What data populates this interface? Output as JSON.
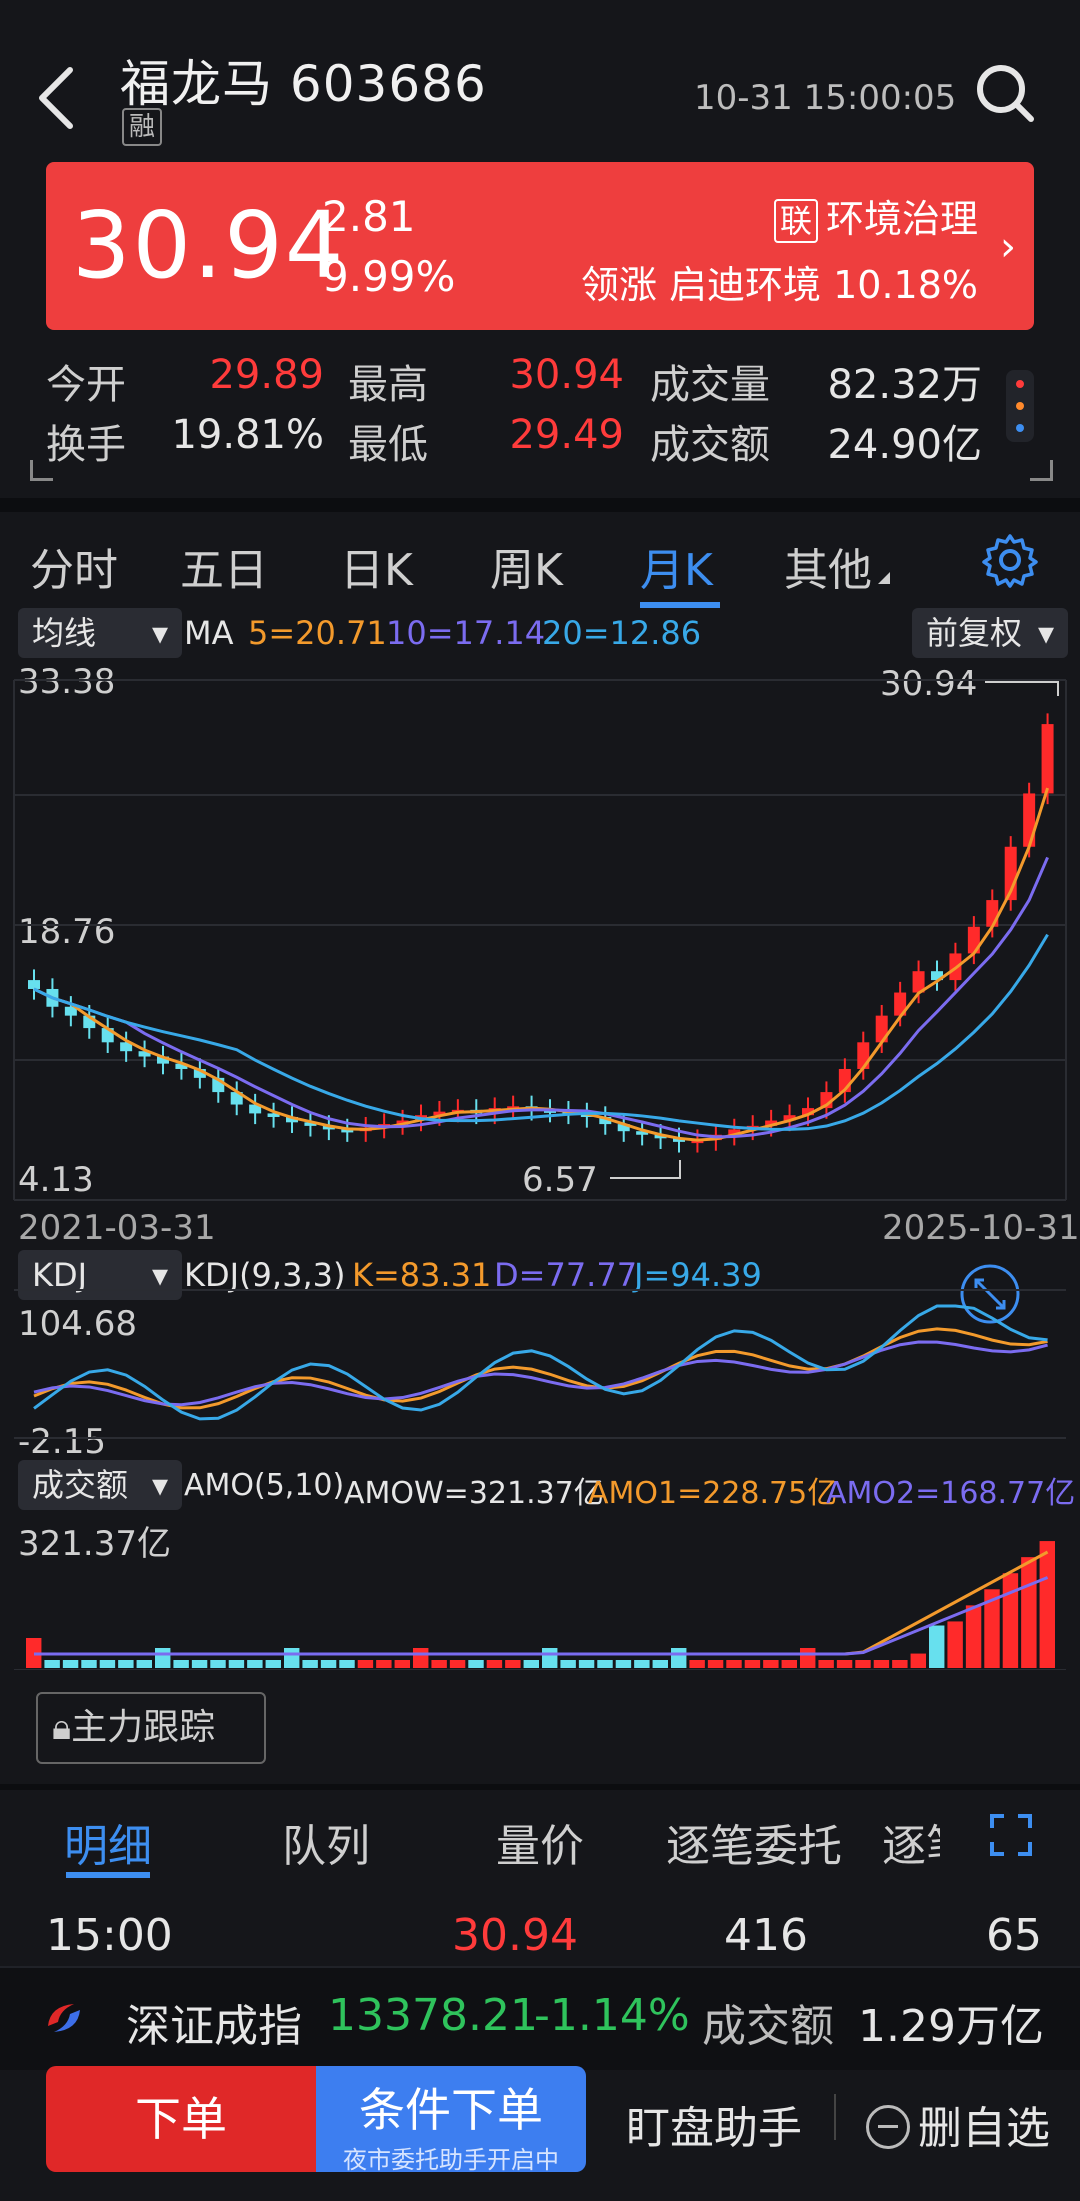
{
  "header": {
    "title": "福龙马 603686",
    "badge": "融",
    "timestamp": "10-31 15:00:05"
  },
  "quote": {
    "price": "30.94",
    "change": "2.81",
    "change_pct": "9.99%",
    "sector_badge": "联",
    "sector": "环境治理",
    "leader": "领涨 启迪环境 10.18%"
  },
  "stats": [
    {
      "label": "今开",
      "value": "29.89",
      "color": "red"
    },
    {
      "label": "最高",
      "value": "30.94",
      "color": "red"
    },
    {
      "label": "成交量",
      "value": "82.32万",
      "color": "white"
    },
    {
      "label": "换手",
      "value": "19.81%",
      "color": "white"
    },
    {
      "label": "最低",
      "value": "29.49",
      "color": "red"
    },
    {
      "label": "成交额",
      "value": "24.90亿",
      "color": "white"
    }
  ],
  "tabs": [
    "分时",
    "五日",
    "日K",
    "周K",
    "月K",
    "其他"
  ],
  "active_tab": "月K",
  "chart": {
    "ma_selector": "均线",
    "ma_label": "MA",
    "ma5": "5=20.71",
    "ma10": "10=17.14",
    "ma20": "20=12.86",
    "adjust": "前复权",
    "y_high": "33.38",
    "y_mid": "18.76",
    "y_low": "4.13",
    "max_label": "30.94",
    "min_label": "6.57",
    "date_start": "2021-03-31",
    "date_end": "2025-10-31",
    "kdj_selector": "KDJ",
    "kdj_label": "KDJ(9,3,3)",
    "kdj_k": "K=83.31",
    "kdj_d": "D=77.77",
    "kdj_j": "J=94.39",
    "kdj_high": "104.68",
    "kdj_low": "-2.15",
    "amo_selector": "成交额",
    "amo_label": "AMO(5,10)",
    "amow": "AMOW=321.37亿",
    "amo1": "AMO1=228.75亿",
    "amo2": "AMO2=168.77亿",
    "amo_high": "321.37亿",
    "colors": {
      "up": "#ff2a2a",
      "down": "#67e0ee",
      "ma5": "#f39a2c",
      "ma10": "#7b6cf0",
      "ma20": "#38a9e8"
    }
  },
  "tracker_button": "主力跟踪",
  "bottom_tabs": [
    "明细",
    "队列",
    "量价",
    "逐笔委托",
    "逐笔"
  ],
  "trade_row": {
    "time": "15:00",
    "price": "30.94",
    "volume": "416",
    "count": "65"
  },
  "index_bar": {
    "name": "深证成指",
    "value": "13378.21",
    "change": "-1.14%",
    "amount_label": "成交额",
    "amount": "1.29万亿"
  },
  "actions": {
    "order": "下单",
    "condition_order": "条件下单",
    "condition_sub": "夜市委托助手开启中",
    "watch": "盯盘助手",
    "delete": "删自选"
  }
}
